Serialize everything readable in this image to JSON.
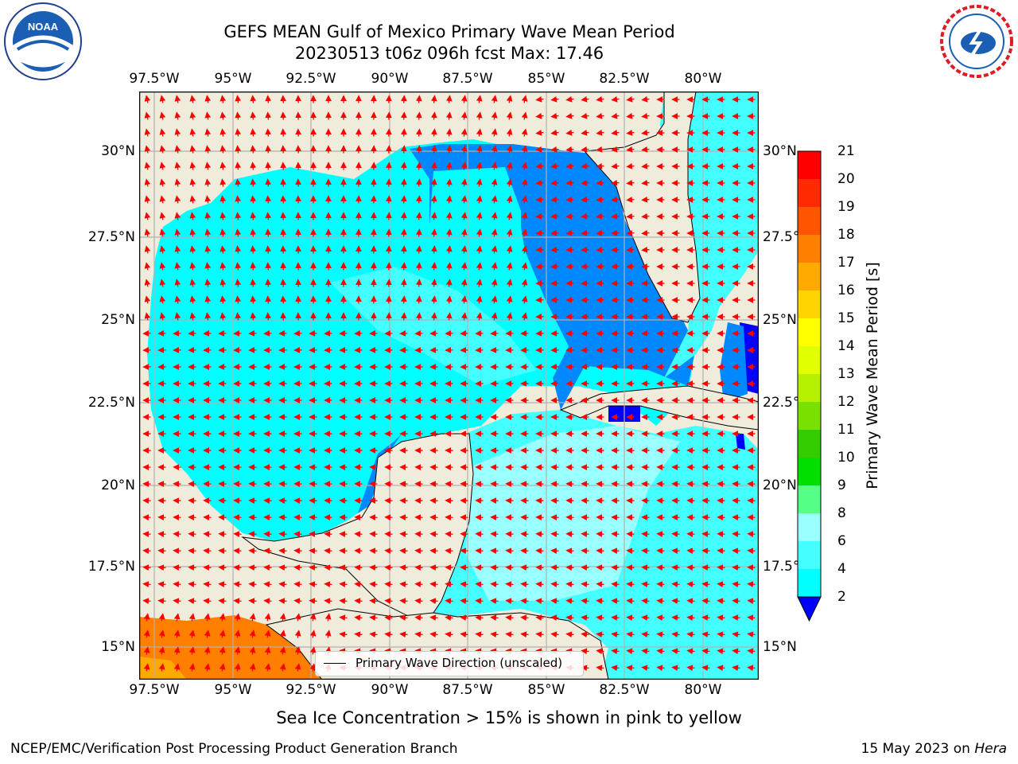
{
  "title": {
    "line1": "GEFS MEAN Gulf of Mexico Primary Wave Mean Period",
    "line2": "20230513 t06z 096h fcst   Max: 17.46"
  },
  "axes": {
    "lon_ticks": [
      "97.5°W",
      "95°W",
      "92.5°W",
      "90°W",
      "87.5°W",
      "85°W",
      "82.5°W",
      "80°W"
    ],
    "lat_ticks": [
      "30°N",
      "27.5°N",
      "25°N",
      "22.5°N",
      "20°N",
      "17.5°N",
      "15°N"
    ]
  },
  "colorbar": {
    "label": "Primary Wave Mean Period [s]",
    "ticks": [
      "21",
      "20",
      "19",
      "18",
      "17",
      "16",
      "15",
      "14",
      "13",
      "12",
      "11",
      "10",
      "9",
      "8",
      "6",
      "4",
      "2"
    ],
    "colors": {
      "21": "#ff0000",
      "20": "#ff2a00",
      "19": "#ff5500",
      "18": "#ff8000",
      "17": "#ffaa00",
      "16": "#ffd400",
      "15": "#ffff00",
      "14": "#e0ff00",
      "13": "#b4f000",
      "12": "#7ae000",
      "11": "#33cc00",
      "10": "#00e000",
      "9": "#55ff88",
      "8": "#99ffff",
      "6": "#44ffff",
      "4": "#00ffff",
      "2": "#0088ff",
      "under": "#0000ff"
    }
  },
  "legend": {
    "label": "Primary Wave Direction (unscaled)"
  },
  "caption": "Sea Ice Concentration > 15% is shown in pink to yellow",
  "footer": {
    "left": "NCEP/EMC/Verification Post Processing Product Generation Branch",
    "right_date": "15 May 2023 on ",
    "right_machine": "Hera"
  },
  "logos": {
    "noaa": "NOAA",
    "nws": "NATIONAL WEATHER SERVICE"
  },
  "map_colors": {
    "land": "#efecdc",
    "ocean_low": "#00ffff",
    "ocean_mid": "#44ffff",
    "ocean_light": "#99ffff",
    "ocean_deep": "#0088ff",
    "ocean_min": "#0000ff",
    "pacific": "#ff8000",
    "arrows": "#ff0000",
    "grid": "#b0b0b0"
  }
}
